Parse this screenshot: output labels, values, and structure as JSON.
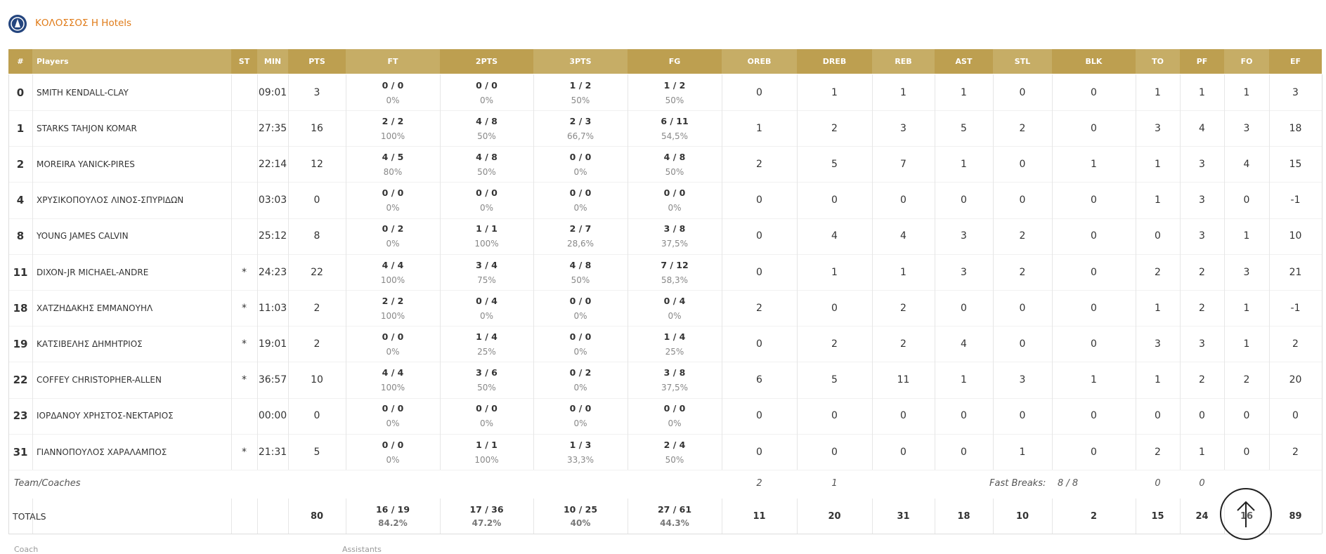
{
  "header": {
    "team": "ΚΟΛΟΣΣΟΣ Η Hotels"
  },
  "table": {
    "columns": [
      "#",
      "Players",
      "ST",
      "MIN",
      "PTS",
      "FT",
      "2PTS",
      "3PTS",
      "FG",
      "OREB",
      "DREB",
      "REB",
      "AST",
      "STL",
      "BLK",
      "TO",
      "PF",
      "FO",
      "EF"
    ],
    "rows": [
      [
        0,
        "SMITH KENDALL-CLAY",
        null,
        "09:01",
        3,
        [
          "0 / 0",
          "0%"
        ],
        [
          "0 / 0",
          "0%"
        ],
        [
          "1 / 2",
          "50%"
        ],
        [
          "1 / 2",
          "50%"
        ],
        0,
        1,
        1,
        1,
        0,
        0,
        1,
        1,
        1,
        3
      ],
      [
        1,
        "STARKS TAHJON KOMAR",
        null,
        "27:35",
        16,
        [
          "2 / 2",
          "100%"
        ],
        [
          "4 / 8",
          "50%"
        ],
        [
          "2 / 3",
          "66,7%"
        ],
        [
          "6 / 11",
          "54,5%"
        ],
        1,
        2,
        3,
        5,
        2,
        0,
        3,
        4,
        3,
        18
      ],
      [
        2,
        "MOREIRA YANICK-PIRES",
        null,
        "22:14",
        12,
        [
          "4 / 5",
          "80%"
        ],
        [
          "4 / 8",
          "50%"
        ],
        [
          "0 / 0",
          "0%"
        ],
        [
          "4 / 8",
          "50%"
        ],
        2,
        5,
        7,
        1,
        0,
        1,
        1,
        3,
        4,
        15
      ],
      [
        4,
        "ΧΡΥΣΙΚΟΠΟΥΛΟΣ ΛΙΝΟΣ-ΣΠΥΡΙΔΩΝ",
        null,
        "03:03",
        0,
        [
          "0 / 0",
          "0%"
        ],
        [
          "0 / 0",
          "0%"
        ],
        [
          "0 / 0",
          "0%"
        ],
        [
          "0 / 0",
          "0%"
        ],
        0,
        0,
        0,
        0,
        0,
        0,
        1,
        3,
        0,
        -1
      ],
      [
        8,
        "YOUNG JAMES CALVIN",
        null,
        "25:12",
        8,
        [
          "0 / 2",
          "0%"
        ],
        [
          "1 / 1",
          "100%"
        ],
        [
          "2 / 7",
          "28,6%"
        ],
        [
          "3 / 8",
          "37,5%"
        ],
        0,
        4,
        4,
        3,
        2,
        0,
        0,
        3,
        1,
        10
      ],
      [
        11,
        "DIXON-JR MICHAEL-ANDRE",
        "*",
        "24:23",
        22,
        [
          "4 / 4",
          "100%"
        ],
        [
          "3 / 4",
          "75%"
        ],
        [
          "4 / 8",
          "50%"
        ],
        [
          "7 / 12",
          "58,3%"
        ],
        0,
        1,
        1,
        3,
        2,
        0,
        2,
        2,
        3,
        21
      ],
      [
        18,
        "ΧΑΤΖΗΔΑΚΗΣ ΕΜΜΑΝΟΥΗΛ",
        "*",
        "11:03",
        2,
        [
          "2 / 2",
          "100%"
        ],
        [
          "0 / 4",
          "0%"
        ],
        [
          "0 / 0",
          "0%"
        ],
        [
          "0 / 4",
          "0%"
        ],
        2,
        0,
        2,
        0,
        0,
        0,
        1,
        2,
        1,
        -1
      ],
      [
        19,
        "ΚΑΤΣΙΒΕΛΗΣ ΔΗΜΗΤΡΙΟΣ",
        "*",
        "19:01",
        2,
        [
          "0 / 0",
          "0%"
        ],
        [
          "1 / 4",
          "25%"
        ],
        [
          "0 / 0",
          "0%"
        ],
        [
          "1 / 4",
          "25%"
        ],
        0,
        2,
        2,
        4,
        0,
        0,
        3,
        3,
        1,
        2
      ],
      [
        22,
        "COFFEY CHRISTOPHER-ALLEN",
        "*",
        "36:57",
        10,
        [
          "4 / 4",
          "100%"
        ],
        [
          "3 / 6",
          "50%"
        ],
        [
          "0 / 2",
          "0%"
        ],
        [
          "3 / 8",
          "37,5%"
        ],
        6,
        5,
        11,
        1,
        3,
        1,
        1,
        2,
        2,
        20
      ],
      [
        23,
        "ΙΟΡΔΑΝΟΥ ΧΡΗΣΤΟΣ-ΝΕΚΤΑΡΙΟΣ",
        null,
        "00:00",
        0,
        [
          "0 / 0",
          "0%"
        ],
        [
          "0 / 0",
          "0%"
        ],
        [
          "0 / 0",
          "0%"
        ],
        [
          "0 / 0",
          "0%"
        ],
        0,
        0,
        0,
        0,
        0,
        0,
        0,
        0,
        0,
        0
      ],
      [
        31,
        "ΓΙΑΝΝΟΠΟΥΛΟΣ ΧΑΡΑΛΑΜΠΟΣ",
        "*",
        "21:31",
        5,
        [
          "0 / 0",
          "0%"
        ],
        [
          "1 / 1",
          "100%"
        ],
        [
          "1 / 3",
          "33,3%"
        ],
        [
          "2 / 4",
          "50%"
        ],
        0,
        0,
        0,
        0,
        1,
        0,
        2,
        1,
        0,
        2
      ]
    ],
    "team_row": {
      "label": "Team/Coaches",
      "oreb": 2,
      "dreb": 1,
      "fast_breaks_label": "Fast Breaks:",
      "fast_breaks": "8 / 8",
      "to": 0,
      "pf": 0
    },
    "totals": {
      "label": "TOTALS",
      "values": [
        80,
        [
          "16 / 19",
          "84.2%"
        ],
        [
          "17 / 36",
          "47.2%"
        ],
        [
          "10 / 25",
          "40%"
        ],
        [
          "27 / 61",
          "44.3%"
        ],
        11,
        20,
        31,
        18,
        10,
        2,
        15,
        24,
        16,
        89
      ]
    }
  },
  "footer": {
    "coach": "Coach",
    "assistants": "Assistants"
  }
}
